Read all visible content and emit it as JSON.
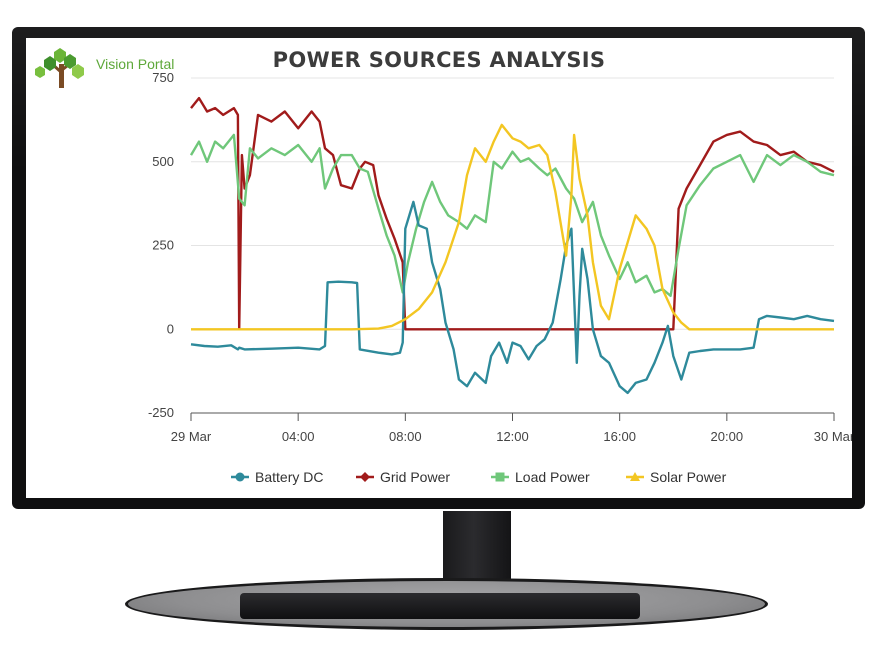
{
  "brand": {
    "name": "Vision Portal"
  },
  "colors": {
    "battery": "#2e8a9b",
    "grid": "#a11b1b",
    "load": "#6fc77a",
    "solar": "#f3c622"
  },
  "chart_data": {
    "type": "line",
    "title": "POWER SOURCES ANALYSIS",
    "xlabel": "",
    "ylabel": "",
    "x_unit": "hours since 29 Mar 00:00",
    "xlim": [
      0,
      24
    ],
    "ylim": [
      -250,
      750
    ],
    "y_ticks": [
      750,
      500,
      250,
      0,
      -250
    ],
    "x_ticks": [
      {
        "x": 0,
        "label": "29 Mar"
      },
      {
        "x": 4,
        "label": "04:00"
      },
      {
        "x": 8,
        "label": "08:00"
      },
      {
        "x": 12,
        "label": "12:00"
      },
      {
        "x": 16,
        "label": "16:00"
      },
      {
        "x": 20,
        "label": "20:00"
      },
      {
        "x": 24,
        "label": "30 Mar"
      }
    ],
    "grid": "horizontal",
    "legend_position": "bottom",
    "series": [
      {
        "name": "Battery DC",
        "color": "#2e8a9b",
        "marker": "circle",
        "points": [
          [
            0,
            -45
          ],
          [
            0.5,
            -50
          ],
          [
            1,
            -52
          ],
          [
            1.5,
            -48
          ],
          [
            1.75,
            -60
          ],
          [
            1.8,
            -55
          ],
          [
            2,
            -60
          ],
          [
            3,
            -58
          ],
          [
            4,
            -55
          ],
          [
            4.8,
            -60
          ],
          [
            5,
            -50
          ],
          [
            5.1,
            140
          ],
          [
            5.5,
            142
          ],
          [
            6,
            140
          ],
          [
            6.2,
            138
          ],
          [
            6.3,
            -60
          ],
          [
            7,
            -70
          ],
          [
            7.5,
            -75
          ],
          [
            7.8,
            -70
          ],
          [
            7.9,
            -40
          ],
          [
            8,
            300
          ],
          [
            8.3,
            380
          ],
          [
            8.5,
            310
          ],
          [
            8.8,
            300
          ],
          [
            9,
            200
          ],
          [
            9.3,
            120
          ],
          [
            9.5,
            20
          ],
          [
            9.8,
            -60
          ],
          [
            10,
            -150
          ],
          [
            10.3,
            -170
          ],
          [
            10.6,
            -130
          ],
          [
            11,
            -160
          ],
          [
            11.2,
            -80
          ],
          [
            11.5,
            -40
          ],
          [
            11.8,
            -100
          ],
          [
            12,
            -40
          ],
          [
            12.3,
            -50
          ],
          [
            12.6,
            -90
          ],
          [
            12.9,
            -50
          ],
          [
            13.2,
            -30
          ],
          [
            13.5,
            20
          ],
          [
            13.8,
            150
          ],
          [
            14,
            250
          ],
          [
            14.2,
            300
          ],
          [
            14.4,
            -100
          ],
          [
            14.5,
            100
          ],
          [
            14.6,
            240
          ],
          [
            14.8,
            150
          ],
          [
            15,
            0
          ],
          [
            15.3,
            -80
          ],
          [
            15.6,
            -100
          ],
          [
            16,
            -170
          ],
          [
            16.3,
            -190
          ],
          [
            16.6,
            -160
          ],
          [
            17,
            -150
          ],
          [
            17.3,
            -100
          ],
          [
            17.6,
            -40
          ],
          [
            17.8,
            10
          ],
          [
            18,
            -80
          ],
          [
            18.3,
            -150
          ],
          [
            18.6,
            -70
          ],
          [
            19,
            -65
          ],
          [
            19.5,
            -60
          ],
          [
            20,
            -60
          ],
          [
            20.5,
            -60
          ],
          [
            21,
            -55
          ],
          [
            21.2,
            30
          ],
          [
            21.5,
            40
          ],
          [
            22,
            35
          ],
          [
            22.5,
            30
          ],
          [
            23,
            40
          ],
          [
            23.5,
            30
          ],
          [
            24,
            25
          ]
        ]
      },
      {
        "name": "Grid Power",
        "color": "#a11b1b",
        "marker": "diamond",
        "points": [
          [
            0,
            660
          ],
          [
            0.3,
            690
          ],
          [
            0.6,
            650
          ],
          [
            0.9,
            660
          ],
          [
            1.2,
            640
          ],
          [
            1.6,
            660
          ],
          [
            1.75,
            640
          ],
          [
            1.8,
            0
          ],
          [
            1.9,
            520
          ],
          [
            2,
            420
          ],
          [
            2.2,
            460
          ],
          [
            2.5,
            640
          ],
          [
            3,
            620
          ],
          [
            3.5,
            650
          ],
          [
            4,
            600
          ],
          [
            4.5,
            650
          ],
          [
            4.8,
            620
          ],
          [
            5,
            540
          ],
          [
            5.3,
            520
          ],
          [
            5.6,
            430
          ],
          [
            6,
            420
          ],
          [
            6.3,
            480
          ],
          [
            6.5,
            500
          ],
          [
            6.8,
            490
          ],
          [
            7,
            400
          ],
          [
            7.3,
            330
          ],
          [
            7.6,
            270
          ],
          [
            7.9,
            200
          ],
          [
            8,
            0
          ],
          [
            8.5,
            0
          ],
          [
            9,
            0
          ],
          [
            10,
            0
          ],
          [
            11,
            0
          ],
          [
            12,
            0
          ],
          [
            13,
            0
          ],
          [
            14,
            0
          ],
          [
            15,
            0
          ],
          [
            16,
            0
          ],
          [
            17,
            0
          ],
          [
            18,
            0
          ],
          [
            18.2,
            360
          ],
          [
            18.5,
            420
          ],
          [
            19,
            490
          ],
          [
            19.5,
            560
          ],
          [
            20,
            580
          ],
          [
            20.5,
            590
          ],
          [
            21,
            560
          ],
          [
            21.5,
            550
          ],
          [
            22,
            520
          ],
          [
            22.5,
            530
          ],
          [
            23,
            500
          ],
          [
            23.5,
            490
          ],
          [
            24,
            470
          ]
        ]
      },
      {
        "name": "Load Power",
        "color": "#6fc77a",
        "marker": "square",
        "points": [
          [
            0,
            520
          ],
          [
            0.3,
            560
          ],
          [
            0.6,
            500
          ],
          [
            0.9,
            560
          ],
          [
            1.2,
            540
          ],
          [
            1.6,
            580
          ],
          [
            1.8,
            390
          ],
          [
            2,
            370
          ],
          [
            2.2,
            540
          ],
          [
            2.5,
            510
          ],
          [
            3,
            540
          ],
          [
            3.5,
            520
          ],
          [
            4,
            550
          ],
          [
            4.5,
            500
          ],
          [
            4.8,
            540
          ],
          [
            5,
            420
          ],
          [
            5.3,
            480
          ],
          [
            5.6,
            520
          ],
          [
            6,
            520
          ],
          [
            6.3,
            480
          ],
          [
            6.6,
            470
          ],
          [
            7,
            360
          ],
          [
            7.3,
            280
          ],
          [
            7.6,
            220
          ],
          [
            7.9,
            110
          ],
          [
            8.1,
            200
          ],
          [
            8.4,
            300
          ],
          [
            8.7,
            380
          ],
          [
            9,
            440
          ],
          [
            9.3,
            380
          ],
          [
            9.6,
            340
          ],
          [
            10,
            320
          ],
          [
            10.3,
            300
          ],
          [
            10.6,
            340
          ],
          [
            11,
            320
          ],
          [
            11.3,
            500
          ],
          [
            11.6,
            480
          ],
          [
            12,
            530
          ],
          [
            12.3,
            500
          ],
          [
            12.6,
            510
          ],
          [
            13,
            480
          ],
          [
            13.3,
            460
          ],
          [
            13.6,
            480
          ],
          [
            14,
            420
          ],
          [
            14.3,
            390
          ],
          [
            14.6,
            320
          ],
          [
            15,
            380
          ],
          [
            15.3,
            280
          ],
          [
            15.6,
            220
          ],
          [
            16,
            150
          ],
          [
            16.3,
            200
          ],
          [
            16.6,
            140
          ],
          [
            17,
            160
          ],
          [
            17.3,
            110
          ],
          [
            17.6,
            120
          ],
          [
            17.9,
            100
          ],
          [
            18.2,
            240
          ],
          [
            18.5,
            370
          ],
          [
            19,
            430
          ],
          [
            19.5,
            480
          ],
          [
            20,
            500
          ],
          [
            20.5,
            520
          ],
          [
            21,
            440
          ],
          [
            21.5,
            520
          ],
          [
            22,
            490
          ],
          [
            22.5,
            520
          ],
          [
            23,
            500
          ],
          [
            23.5,
            470
          ],
          [
            24,
            460
          ]
        ]
      },
      {
        "name": "Solar Power",
        "color": "#f3c622",
        "marker": "triangle",
        "points": [
          [
            0,
            0
          ],
          [
            1,
            0
          ],
          [
            2,
            0
          ],
          [
            3,
            0
          ],
          [
            4,
            0
          ],
          [
            5,
            0
          ],
          [
            6,
            0
          ],
          [
            7,
            2
          ],
          [
            7.5,
            10
          ],
          [
            8,
            30
          ],
          [
            8.5,
            60
          ],
          [
            9,
            110
          ],
          [
            9.5,
            200
          ],
          [
            10,
            320
          ],
          [
            10.3,
            460
          ],
          [
            10.6,
            540
          ],
          [
            11,
            500
          ],
          [
            11.3,
            560
          ],
          [
            11.6,
            610
          ],
          [
            12,
            570
          ],
          [
            12.3,
            560
          ],
          [
            12.6,
            540
          ],
          [
            13,
            550
          ],
          [
            13.3,
            520
          ],
          [
            13.6,
            410
          ],
          [
            14,
            220
          ],
          [
            14.2,
            400
          ],
          [
            14.3,
            580
          ],
          [
            14.5,
            450
          ],
          [
            14.8,
            340
          ],
          [
            15,
            200
          ],
          [
            15.3,
            70
          ],
          [
            15.6,
            30
          ],
          [
            16,
            180
          ],
          [
            16.3,
            260
          ],
          [
            16.6,
            340
          ],
          [
            17,
            300
          ],
          [
            17.3,
            250
          ],
          [
            17.6,
            120
          ],
          [
            18,
            50
          ],
          [
            18.3,
            20
          ],
          [
            18.6,
            0
          ],
          [
            19,
            0
          ],
          [
            20,
            0
          ],
          [
            21,
            0
          ],
          [
            22,
            0
          ],
          [
            23,
            0
          ],
          [
            24,
            0
          ]
        ]
      }
    ]
  }
}
